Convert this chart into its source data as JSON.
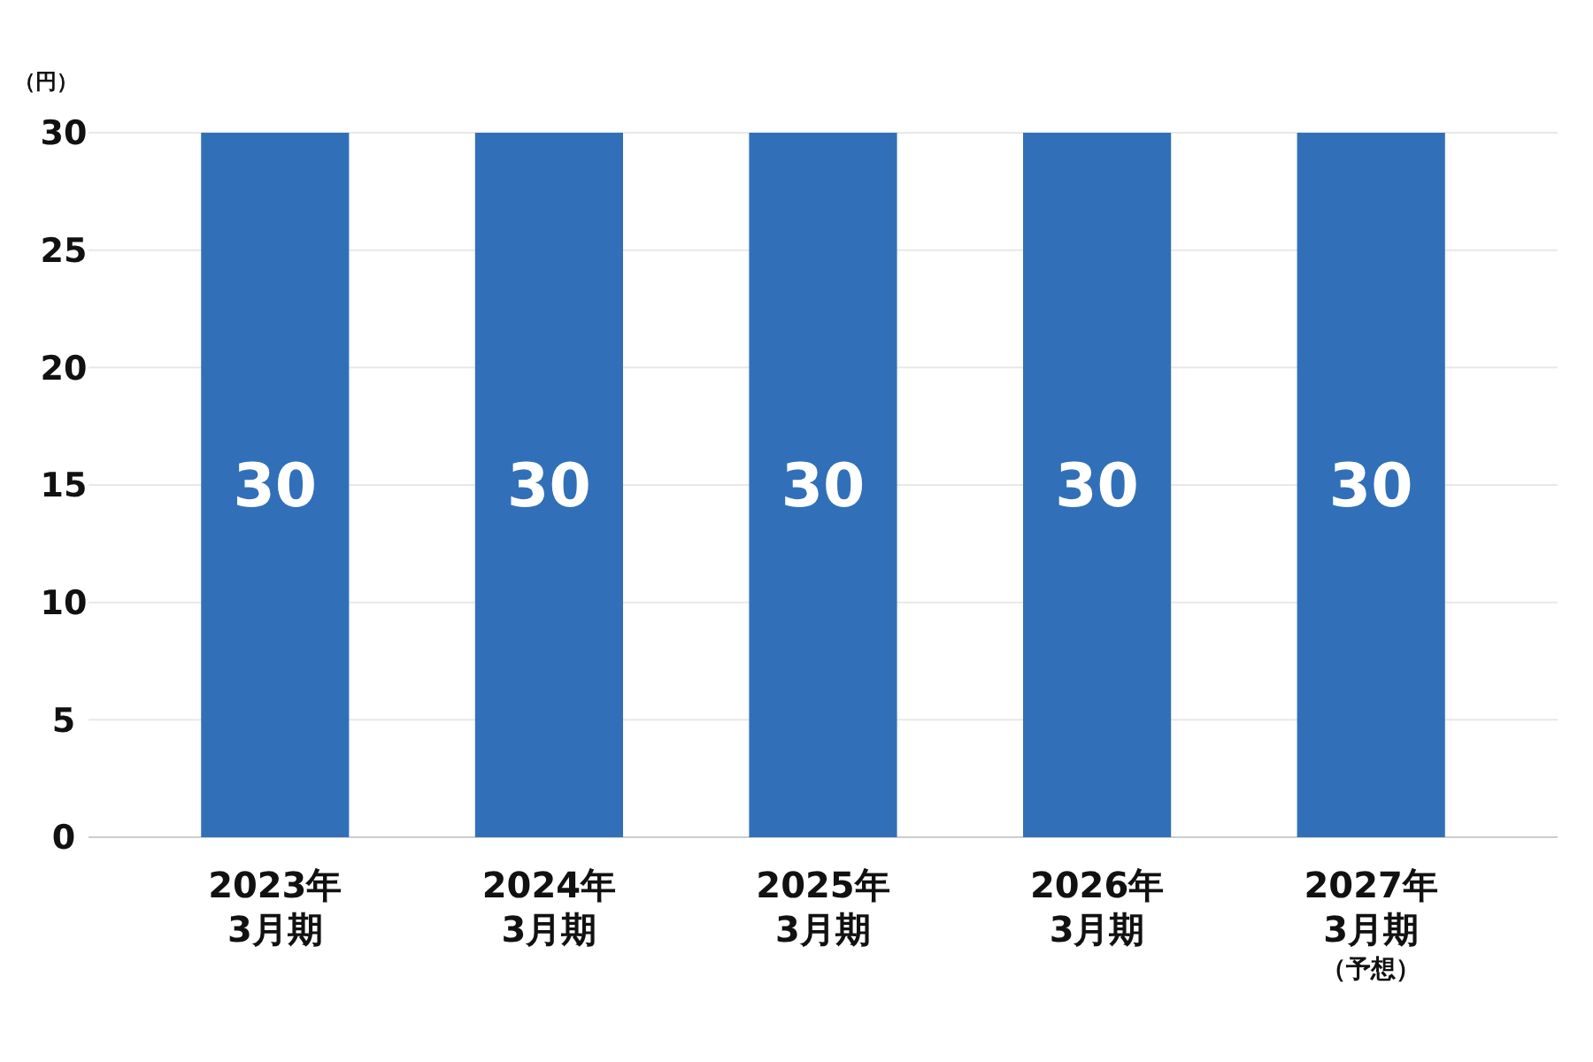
{
  "chart_data": {
    "type": "bar",
    "ylabel": "（円）",
    "categories": [
      "2023年3月期",
      "2024年3月期",
      "2025年3月期",
      "2026年3月期",
      "2027年3月期（予想）"
    ],
    "values": [
      30,
      30,
      30,
      30,
      30
    ],
    "color": "#3170b8",
    "ylim": [
      0,
      30
    ],
    "yticks": [
      0,
      5,
      10,
      15,
      20,
      25,
      30
    ],
    "grid": "y",
    "data_labels": true
  }
}
